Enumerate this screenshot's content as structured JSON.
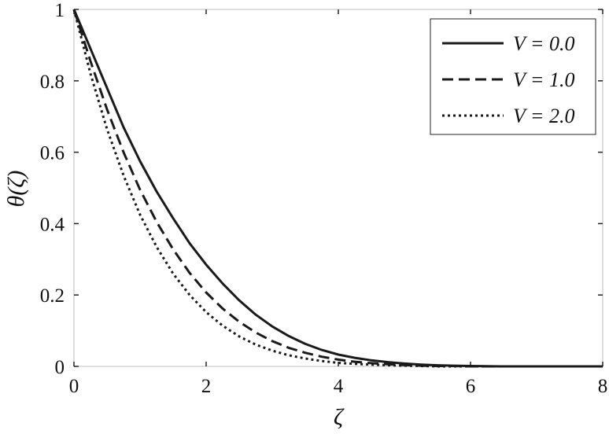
{
  "chart_data": {
    "type": "line",
    "xlabel": "ζ",
    "ylabel": "θ(ζ)",
    "xlim": [
      0,
      8
    ],
    "ylim": [
      0,
      1
    ],
    "xticks": [
      "0",
      "2",
      "4",
      "6",
      "8"
    ],
    "yticks": [
      "0",
      "0.2",
      "0.4",
      "0.6",
      "0.8",
      "1"
    ],
    "grid": false,
    "legend_position": "top-right",
    "x": [
      0,
      0.25,
      0.5,
      0.75,
      1.0,
      1.25,
      1.5,
      1.75,
      2.0,
      2.25,
      2.5,
      2.75,
      3.0,
      3.25,
      3.5,
      3.75,
      4.0,
      4.25,
      4.5,
      4.75,
      5.0,
      5.25,
      5.5,
      5.75,
      6.0,
      6.5,
      7.0,
      7.5,
      8.0
    ],
    "series": [
      {
        "name": "V = 0.0",
        "style": "solid",
        "values": [
          1.0,
          0.89,
          0.78,
          0.67,
          0.575,
          0.49,
          0.415,
          0.345,
          0.285,
          0.232,
          0.185,
          0.145,
          0.112,
          0.085,
          0.063,
          0.046,
          0.033,
          0.024,
          0.017,
          0.012,
          0.008,
          0.005,
          0.003,
          0.002,
          0.001,
          0.0,
          0.0,
          0.0,
          0.0
        ]
      },
      {
        "name": "V = 1.0",
        "style": "dashed",
        "values": [
          1.0,
          0.855,
          0.72,
          0.6,
          0.495,
          0.405,
          0.328,
          0.262,
          0.207,
          0.162,
          0.125,
          0.095,
          0.071,
          0.052,
          0.038,
          0.027,
          0.019,
          0.013,
          0.009,
          0.006,
          0.004,
          0.002,
          0.001,
          0.001,
          0.0,
          0.0,
          0.0,
          0.0,
          0.0
        ]
      },
      {
        "name": "V = 2.0",
        "style": "dotted",
        "values": [
          1.0,
          0.82,
          0.665,
          0.535,
          0.425,
          0.335,
          0.26,
          0.2,
          0.152,
          0.114,
          0.084,
          0.061,
          0.044,
          0.031,
          0.022,
          0.015,
          0.01,
          0.007,
          0.005,
          0.003,
          0.002,
          0.001,
          0.0,
          0.0,
          0.0,
          0.0,
          0.0,
          0.0,
          0.0
        ]
      }
    ]
  }
}
